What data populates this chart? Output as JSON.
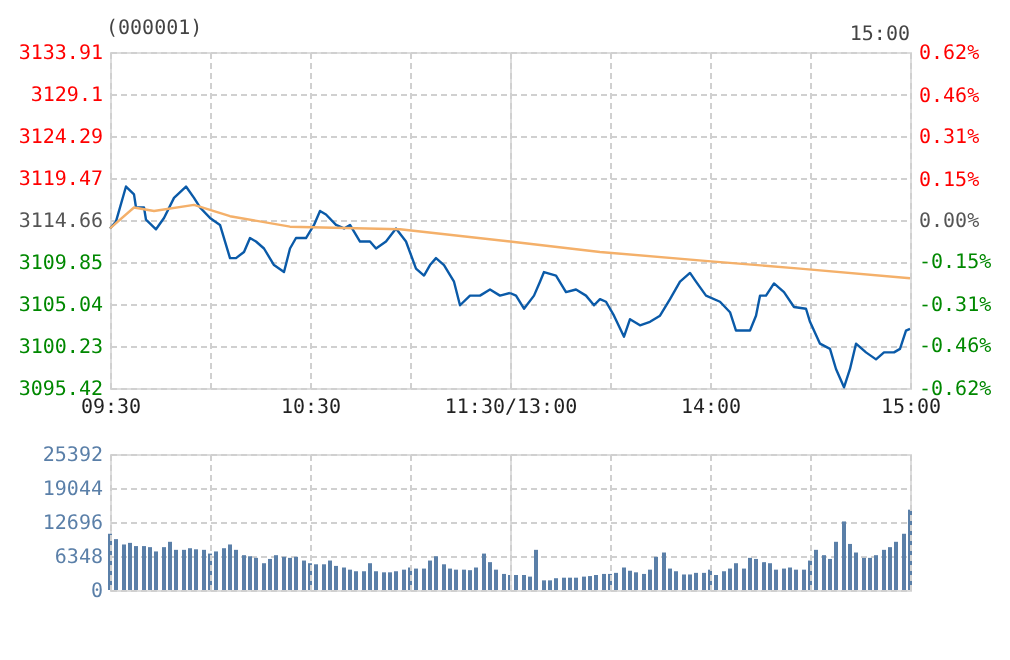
{
  "chart_data": [
    {
      "type": "line",
      "title": "(000001)",
      "grid": true,
      "xlim": [
        9.5,
        11.5
      ],
      "xticks": [
        {
          "value": 9.5,
          "label": "09:30"
        },
        {
          "value": 10,
          "label": null
        },
        {
          "value": 10.5,
          "label": "10:30"
        },
        {
          "value": 11,
          "label": null
        },
        {
          "value": 11.5,
          "label": "11:30/13:00"
        }
      ],
      "ylim": [
        3095.42,
        3133.91
      ],
      "yticks": [
        3095.42,
        3100.23,
        3105.04,
        3109.85,
        3114.66,
        3119.47,
        3124.29,
        3129.1,
        3133.91
      ],
      "series": [
        {
          "color": "#0a5aa8",
          "x": [
            9.5,
            9.53,
            9.58,
            9.62,
            9.63,
            9.67,
            9.68,
            9.73,
            9.77,
            9.82,
            9.88,
            9.92,
            9.95,
            10.0,
            10.05,
            10.1,
            10.13,
            10.17,
            10.2,
            10.23,
            10.27,
            10.32,
            10.37,
            10.4,
            10.43,
            10.48,
            10.52,
            10.55,
            10.58,
            10.63,
            10.67,
            10.7,
            10.75,
            10.8,
            10.83,
            10.88,
            10.93,
            10.98,
            11.03,
            11.07,
            11.1,
            11.13,
            11.17,
            11.22,
            11.25,
            11.3,
            11.35,
            11.4,
            11.45,
            11.5
          ],
          "values": [
            3113.7,
            3114.5,
            3118.5,
            3117.6,
            3116.1,
            3116.1,
            3114.7,
            3113.6,
            3114.9,
            3117.2,
            3118.5,
            3117.2,
            3116.1,
            3114.9,
            3114.1,
            3110.3,
            3110.3,
            3111.0,
            3112.6,
            3112.2,
            3111.4,
            3109.5,
            3108.7,
            3111.4,
            3112.6,
            3112.6,
            3114.1,
            3115.7,
            3115.3,
            3114.1,
            3113.7,
            3114.1,
            3112.2,
            3112.2,
            3111.4,
            3112.2,
            3113.7,
            3112.2,
            3109.1,
            3108.3,
            3109.5,
            3110.3,
            3109.5,
            3107.6,
            3104.9,
            3106.0,
            3106.0,
            3106.7,
            3106.0,
            3106.3
          ]
        },
        {
          "color": "#f4b06a",
          "x": [
            9.5,
            9.62,
            9.72,
            9.92,
            10.1,
            10.4,
            10.95,
            11.5
          ],
          "values": [
            3113.7,
            3116.1,
            3115.7,
            3116.4,
            3115.1,
            3113.9,
            3113.6,
            3112.2
          ]
        }
      ]
    },
    {
      "type": "line",
      "annotations": [
        "15:00"
      ],
      "grid": true,
      "tick_labels": "x",
      "xlim": [
        13,
        15
      ],
      "xticks": [
        {
          "value": 13,
          "label": null
        },
        {
          "value": 13.5,
          "label": null
        },
        {
          "value": 14,
          "label": "14:00"
        },
        {
          "value": 14.5,
          "label": null
        },
        {
          "value": 15,
          "label": "15:00"
        }
      ],
      "ylim": [
        3095.42,
        3133.91
      ],
      "yticks": [
        3095.42,
        3100.23,
        3105.04,
        3109.85,
        3114.66,
        3119.47,
        3124.29,
        3129.1,
        3133.91
      ],
      "y2lim": [
        -0.62,
        0.62
      ],
      "y2ticks": [
        {
          "value": -0.62,
          "label": "-0.62%"
        },
        {
          "value": -0.46,
          "label": "-0.46%"
        },
        {
          "value": -0.31,
          "label": "-0.31%"
        },
        {
          "value": -0.15,
          "label": "-0.15%"
        },
        {
          "value": 0,
          "label": "0.00%"
        },
        {
          "value": 0.15,
          "label": "0.15%"
        },
        {
          "value": 0.31,
          "label": "0.31%"
        },
        {
          "value": 0.46,
          "label": "0.46%"
        },
        {
          "value": 0.62,
          "label": "0.62%"
        }
      ],
      "series": [
        {
          "color": "#0a5aa8",
          "x": [
            13.0,
            13.03,
            13.07,
            13.12,
            13.15,
            13.17,
            13.23,
            13.28,
            13.33,
            13.38,
            13.42,
            13.45,
            13.48,
            13.52,
            13.57,
            13.6,
            13.65,
            13.7,
            13.75,
            13.8,
            13.85,
            13.9,
            13.93,
            13.98,
            14.05,
            14.1,
            14.13,
            14.2,
            14.23,
            14.25,
            14.28,
            14.32,
            14.37,
            14.42,
            14.48,
            14.5,
            14.55,
            14.6,
            14.63,
            14.67,
            14.7,
            14.73,
            14.78,
            14.83,
            14.87,
            14.92,
            14.95,
            14.98,
            15.0
          ],
          "values": [
            3106.3,
            3106.0,
            3104.5,
            3106.0,
            3107.6,
            3108.7,
            3108.3,
            3106.4,
            3106.7,
            3106.0,
            3104.9,
            3105.6,
            3105.3,
            3103.7,
            3101.3,
            3103.3,
            3102.6,
            3103.0,
            3103.7,
            3105.6,
            3107.6,
            3108.6,
            3107.6,
            3106.0,
            3105.3,
            3104.1,
            3102.0,
            3102.0,
            3103.7,
            3106.0,
            3106.0,
            3107.4,
            3106.4,
            3104.7,
            3104.5,
            3103.0,
            3100.5,
            3099.9,
            3097.6,
            3095.5,
            3097.6,
            3100.5,
            3099.5,
            3098.7,
            3099.5,
            3099.5,
            3099.9,
            3102.0,
            3102.2
          ]
        },
        {
          "color": "#f4b06a",
          "x": [
            13.0,
            13.45,
            14.02,
            14.45,
            15.0
          ],
          "values": [
            3112.2,
            3111.0,
            3109.9,
            3109.1,
            3108.0
          ]
        }
      ]
    },
    {
      "type": "bar",
      "grid": true,
      "tick_labels": "y",
      "color": "#5a7fa8",
      "xlim": [
        9.5,
        11.5
      ],
      "xticks": [
        9.5,
        10,
        10.5,
        11,
        11.5
      ],
      "ylim": [
        0,
        25392
      ],
      "yticks": [
        0,
        6348,
        12696,
        19044,
        25392
      ],
      "x": [
        9.5,
        9.53,
        9.57,
        9.6,
        9.63,
        9.67,
        9.7,
        9.73,
        9.77,
        9.8,
        9.83,
        9.87,
        9.9,
        9.93,
        9.97,
        10.0,
        10.03,
        10.07,
        10.1,
        10.13,
        10.17,
        10.2,
        10.23,
        10.27,
        10.3,
        10.33,
        10.37,
        10.4,
        10.43,
        10.47,
        10.5,
        10.53,
        10.57,
        10.6,
        10.63,
        10.67,
        10.7,
        10.73,
        10.77,
        10.8,
        10.83,
        10.87,
        10.9,
        10.93,
        10.97,
        11.0,
        11.03,
        11.07,
        11.1,
        11.13,
        11.17,
        11.2,
        11.23,
        11.27,
        11.3,
        11.33,
        11.37,
        11.4,
        11.43,
        11.47,
        11.5
      ],
      "values": [
        10500,
        9500,
        8500,
        8800,
        8200,
        8200,
        8000,
        7200,
        8000,
        9000,
        7500,
        7500,
        7800,
        7600,
        7500,
        6800,
        7200,
        7800,
        8500,
        7500,
        6500,
        6300,
        6000,
        5000,
        5800,
        6500,
        6200,
        6000,
        6200,
        5500,
        5000,
        4800,
        4800,
        5500,
        4500,
        4200,
        3800,
        3500,
        3500,
        5000,
        3500,
        3300,
        3300,
        3500,
        3800,
        4200,
        4000,
        4000,
        5500,
        6300,
        4800,
        4000,
        3800,
        3800,
        3700,
        4200,
        6800,
        5200,
        3800,
        3000,
        2800
      ]
    },
    {
      "type": "bar",
      "grid": true,
      "tick_labels": false,
      "color": "#5a7fa8",
      "xlim": [
        13,
        15
      ],
      "xticks": [
        13,
        13.5,
        14,
        14.5,
        15
      ],
      "ylim": [
        0,
        25392
      ],
      "yticks": [
        0,
        6348,
        12696,
        19044,
        25392
      ],
      "x": [
        13.03,
        13.07,
        13.1,
        13.13,
        13.17,
        13.2,
        13.23,
        13.27,
        13.3,
        13.33,
        13.37,
        13.4,
        13.43,
        13.47,
        13.5,
        13.53,
        13.57,
        13.6,
        13.63,
        13.67,
        13.7,
        13.73,
        13.77,
        13.8,
        13.83,
        13.87,
        13.9,
        13.93,
        13.97,
        14.0,
        14.03,
        14.07,
        14.1,
        14.13,
        14.17,
        14.2,
        14.23,
        14.27,
        14.3,
        14.33,
        14.37,
        14.4,
        14.43,
        14.47,
        14.5,
        14.53,
        14.57,
        14.6,
        14.63,
        14.67,
        14.7,
        14.73,
        14.77,
        14.8,
        14.83,
        14.87,
        14.9,
        14.93,
        14.97,
        15.0
      ],
      "values": [
        2800,
        2800,
        2500,
        7500,
        1800,
        1800,
        2200,
        2300,
        2300,
        2300,
        2500,
        2600,
        2800,
        3000,
        3000,
        3200,
        4200,
        3600,
        3300,
        3000,
        3800,
        6200,
        7000,
        4000,
        3500,
        2900,
        2900,
        3200,
        3200,
        3800,
        2800,
        3500,
        4000,
        5000,
        4000,
        6000,
        5800,
        5200,
        5000,
        3800,
        4000,
        4200,
        3800,
        3800,
        5500,
        7500,
        6500,
        5800,
        9000,
        12800,
        8600,
        7000,
        6000,
        6000,
        6500,
        7500,
        8000,
        9000,
        10500,
        15000
      ]
    }
  ]
}
